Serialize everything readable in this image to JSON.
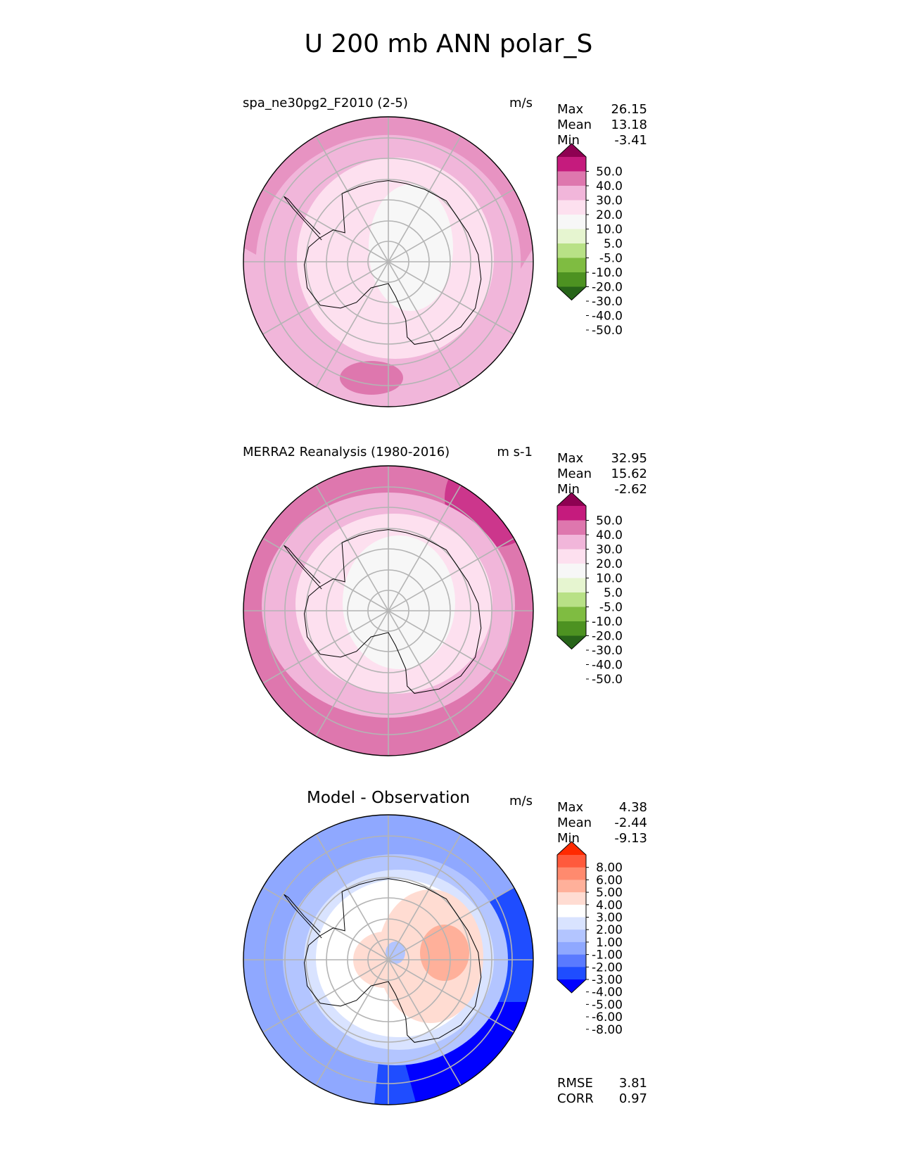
{
  "figure_title": "U 200 mb ANN polar_S",
  "colors": {
    "seq": [
      "#276419",
      "#4d9221",
      "#7fbc41",
      "#b8e186",
      "#e6f5d0",
      "#f7f7f7",
      "#fde0ef",
      "#f1b6da",
      "#de77ae",
      "#c51b7d",
      "#8e0152"
    ],
    "div": [
      "#0000ff",
      "#1f4dff",
      "#5a7aff",
      "#8fa8ff",
      "#b3c5ff",
      "#d9e3ff",
      "#ffffff",
      "#ffdcd2",
      "#ffb09a",
      "#ff8a6e",
      "#ff5a3c",
      "#ff2a00"
    ]
  },
  "chart_data": [
    {
      "type": "heatmap",
      "projection": "south-polar-stereographic",
      "title": "spa_ne30pg2_F2010 (2-5)",
      "units": "m/s",
      "stats": [
        {
          "label": "Max",
          "value": "26.15"
        },
        {
          "label": "Mean",
          "value": "13.18"
        },
        {
          "label": "Min",
          "value": "-3.41"
        }
      ],
      "levels": [
        "50.0",
        "40.0",
        "30.0",
        "20.0",
        "10.0",
        "5.0",
        "-5.0",
        "-10.0",
        "-20.0",
        "-30.0",
        "-40.0",
        "-50.0"
      ]
    },
    {
      "type": "heatmap",
      "projection": "south-polar-stereographic",
      "title": "MERRA2 Reanalysis (1980-2016)",
      "units": "m s-1",
      "stats": [
        {
          "label": "Max",
          "value": "32.95"
        },
        {
          "label": "Mean",
          "value": "15.62"
        },
        {
          "label": "Min",
          "value": "-2.62"
        }
      ],
      "levels": [
        "50.0",
        "40.0",
        "30.0",
        "20.0",
        "10.0",
        "5.0",
        "-5.0",
        "-10.0",
        "-20.0",
        "-30.0",
        "-40.0",
        "-50.0"
      ]
    },
    {
      "type": "heatmap",
      "projection": "south-polar-stereographic",
      "title": "Model - Observation",
      "units": "m/s",
      "stats": [
        {
          "label": "Max",
          "value": "4.38"
        },
        {
          "label": "Mean",
          "value": "-2.44"
        },
        {
          "label": "Min",
          "value": "-9.13"
        }
      ],
      "levels": [
        "8.00",
        "6.00",
        "5.00",
        "4.00",
        "3.00",
        "2.00",
        "1.00",
        "-1.00",
        "-2.00",
        "-3.00",
        "-4.00",
        "-5.00",
        "-6.00",
        "-8.00"
      ],
      "metrics": [
        {
          "label": "RMSE",
          "value": "3.81"
        },
        {
          "label": "CORR",
          "value": "0.97"
        }
      ]
    }
  ]
}
